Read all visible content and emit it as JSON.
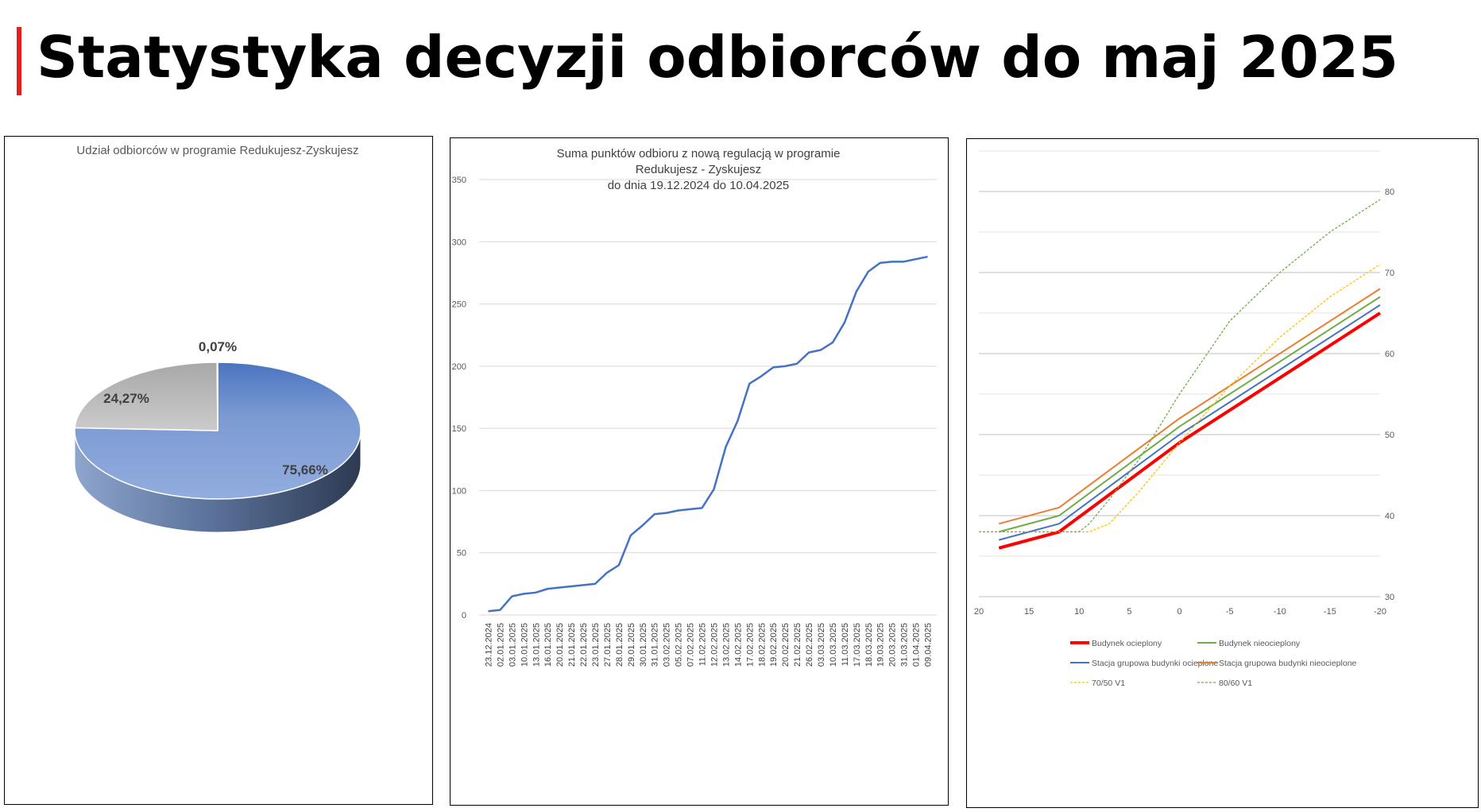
{
  "page": {
    "title": "Statystyka decyzji odbiorców do maj 2025",
    "accent_color": "#e41f1f"
  },
  "chart_data": [
    {
      "type": "pie",
      "title": "Udział odbiorców w programie Redukujesz-Zyskujesz",
      "slices": [
        {
          "label": "75,66%",
          "value": 75.66,
          "color": "#7f9fd6"
        },
        {
          "label": "24,27%",
          "value": 24.27,
          "color": "#b8b8b8"
        },
        {
          "label": "0,07%",
          "value": 0.07,
          "color": "#4472c4"
        }
      ],
      "legend": "none"
    },
    {
      "type": "line",
      "title": "Suma punktów odbioru z nową regulacją w programie Redukujesz - Zyskujesz do dnia 19.12.2024 do 10.04.2025",
      "xlabel": "",
      "ylabel": "",
      "ylim": [
        0,
        350
      ],
      "yticks": [
        "0",
        "50",
        "100",
        "150",
        "200",
        "250",
        "300",
        "350"
      ],
      "grid": true,
      "color": "#4472c4",
      "categories": [
        "23.12.2024",
        "02.01.2025",
        "03.01.2025",
        "10.01.2025",
        "13.01.2025",
        "16.01.2025",
        "20.01.2025",
        "21.01.2025",
        "22.01.2025",
        "23.01.2025",
        "27.01.2025",
        "28.01.2025",
        "29.01.2025",
        "30.01.2025",
        "31.01.2025",
        "03.02.2025",
        "05.02.2025",
        "07.02.2025",
        "11.02.2025",
        "12.02.2025",
        "13.02.2025",
        "14.02.2025",
        "17.02.2025",
        "18.02.2025",
        "19.02.2025",
        "20.02.2025",
        "21.02.2025",
        "26.02.2025",
        "03.03.2025",
        "10.03.2025",
        "11.03.2025",
        "17.03.2025",
        "18.03.2025",
        "19.03.2025",
        "20.03.2025",
        "31.03.2025",
        "01.04.2025",
        "09.04.2025"
      ],
      "values": [
        3,
        4,
        15,
        17,
        18,
        21,
        22,
        23,
        24,
        25,
        34,
        40,
        64,
        72,
        81,
        82,
        84,
        85,
        86,
        101,
        135,
        156,
        186,
        192,
        199,
        200,
        202,
        211,
        213,
        219,
        235,
        260,
        276,
        283,
        284,
        284,
        286,
        288
      ]
    },
    {
      "type": "line",
      "title": "",
      "xlim": [
        20,
        -20
      ],
      "xticks": [
        "20",
        "15",
        "10",
        "5",
        "0",
        "-5",
        "-10",
        "-15",
        "-20"
      ],
      "ylim": [
        30,
        80
      ],
      "yticks": [
        "30",
        "40",
        "50",
        "60",
        "70",
        "80"
      ],
      "grid": true,
      "legend": "bottom",
      "series": [
        {
          "name": "Budynek ocieplony",
          "color": "#ff0000",
          "style": "solid-thick",
          "x": [
            18,
            12,
            0,
            -20
          ],
          "y": [
            36,
            38,
            49,
            65
          ]
        },
        {
          "name": "Budynek nieocieplony",
          "color": "#70ad47",
          "style": "solid",
          "x": [
            18,
            12,
            0,
            -20
          ],
          "y": [
            38,
            40,
            51,
            67
          ]
        },
        {
          "name": "Stacja grupowa budynki ocieplone",
          "color": "#4472c4",
          "style": "solid",
          "x": [
            18,
            12,
            0,
            -20
          ],
          "y": [
            37,
            39,
            50,
            66
          ]
        },
        {
          "name": "Stacja grupowa budynki nieocieplone",
          "color": "#ed7d31",
          "style": "solid",
          "x": [
            18,
            12,
            0,
            -20
          ],
          "y": [
            39,
            41,
            52,
            68
          ]
        },
        {
          "name": "70/50 V1",
          "color": "#ffc000",
          "style": "dotted",
          "x": [
            20,
            10,
            9,
            7,
            4,
            0,
            -5,
            -10,
            -15,
            -20
          ],
          "y": [
            38,
            38,
            38,
            39,
            43,
            49,
            56,
            62,
            67,
            71
          ]
        },
        {
          "name": "80/60 V1",
          "color": "#70ad47",
          "style": "dotted",
          "x": [
            20,
            10,
            9,
            7,
            4,
            0,
            -5,
            -10,
            -15,
            -20
          ],
          "y": [
            38,
            38,
            39,
            42,
            47,
            55,
            64,
            70,
            75,
            79
          ]
        }
      ]
    }
  ]
}
